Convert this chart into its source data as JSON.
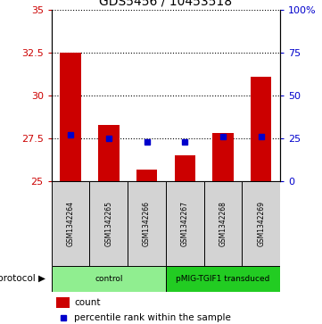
{
  "title": "GDS5456 / 10453518",
  "samples": [
    "GSM1342264",
    "GSM1342265",
    "GSM1342266",
    "GSM1342267",
    "GSM1342268",
    "GSM1342269"
  ],
  "counts": [
    32.5,
    28.3,
    25.7,
    26.5,
    27.8,
    31.1
  ],
  "count_bottom": [
    25.0,
    25.0,
    25.0,
    25.0,
    25.0,
    25.0
  ],
  "percentile_ranks_pct": [
    27.0,
    25.0,
    23.0,
    23.0,
    26.0,
    26.0
  ],
  "ylim_left": [
    25,
    35
  ],
  "ylim_right": [
    0,
    100
  ],
  "yticks_left": [
    25,
    27.5,
    30,
    32.5,
    35
  ],
  "yticks_right": [
    0,
    25,
    50,
    75,
    100
  ],
  "ytick_labels_right": [
    "0",
    "25",
    "50",
    "75",
    "100%"
  ],
  "bar_color": "#cc0000",
  "dot_color": "#0000cc",
  "bar_width": 0.55,
  "groups": [
    {
      "label": "control",
      "samples": [
        0,
        1,
        2
      ],
      "color": "#90ee90"
    },
    {
      "label": "pMIG-TGIF1 transduced",
      "samples": [
        3,
        4,
        5
      ],
      "color": "#22cc22"
    }
  ],
  "protocol_label": "protocol",
  "legend_count_label": "count",
  "legend_percentile_label": "percentile rank within the sample",
  "grid_color": "black",
  "grid_linestyle": "dotted",
  "grid_linewidth": 0.8,
  "sample_box_color": "#d3d3d3",
  "title_fontsize": 10,
  "tick_fontsize": 8,
  "label_fontsize": 8
}
